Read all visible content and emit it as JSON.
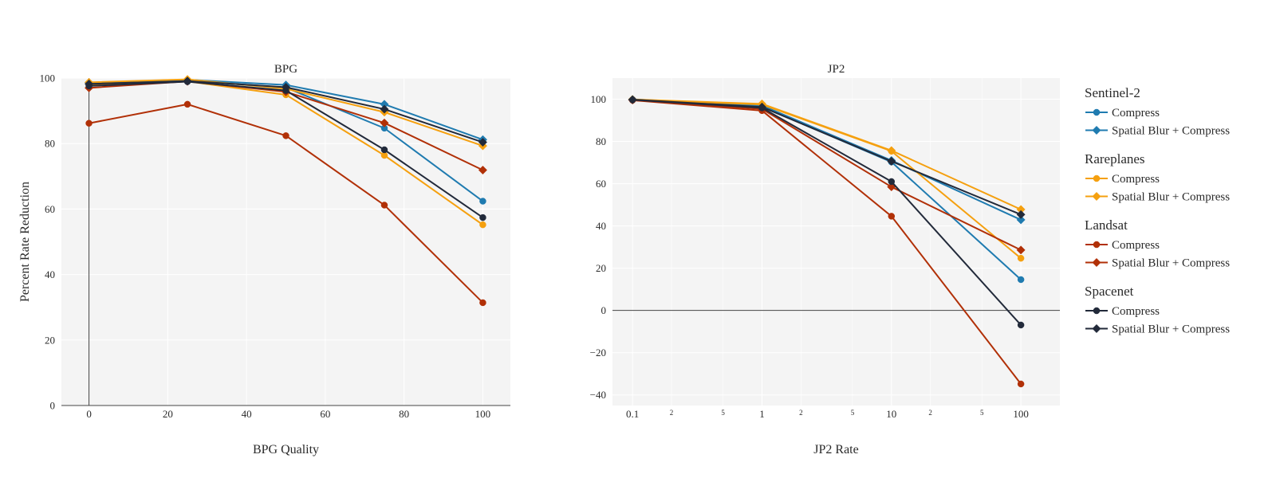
{
  "chart_data": [
    {
      "type": "line",
      "title": "BPG",
      "xlabel": "BPG Quality",
      "ylabel": "Percent Rate Reduction",
      "x_scale": "linear",
      "xlim": [
        -7,
        107
      ],
      "ylim": [
        0,
        100
      ],
      "x_ticks": [
        0,
        20,
        40,
        60,
        80,
        100
      ],
      "x_tick_labels": [
        "0",
        "20",
        "40",
        "60",
        "80",
        "100"
      ],
      "y_ticks": [
        0,
        20,
        40,
        60,
        80,
        100
      ],
      "y_tick_labels": [
        "0",
        "20",
        "40",
        "60",
        "80",
        "100"
      ],
      "x": [
        0,
        25,
        50,
        75,
        100
      ],
      "series": [
        {
          "group": "Sentinel-2",
          "name": "Compress",
          "color": "#1f7bb0",
          "marker": "circle",
          "values": [
            97.9,
            99.2,
            97.1,
            84.7,
            62.4
          ]
        },
        {
          "group": "Sentinel-2",
          "name": "Spatial Blur + Compress",
          "color": "#1f7bb0",
          "marker": "diamond",
          "values": [
            98.6,
            99.5,
            97.9,
            92.0,
            81.2
          ]
        },
        {
          "group": "Rareplanes",
          "name": "Compress",
          "color": "#f5a00f",
          "marker": "circle",
          "values": [
            97.8,
            99.0,
            94.9,
            76.4,
            55.2
          ]
        },
        {
          "group": "Rareplanes",
          "name": "Spatial Blur + Compress",
          "color": "#f5a00f",
          "marker": "diamond",
          "values": [
            98.7,
            99.6,
            96.7,
            89.6,
            79.3
          ]
        },
        {
          "group": "Landsat",
          "name": "Compress",
          "color": "#b13007",
          "marker": "circle",
          "values": [
            86.2,
            92.0,
            82.4,
            61.2,
            31.4
          ]
        },
        {
          "group": "Landsat",
          "name": "Spatial Blur + Compress",
          "color": "#b13007",
          "marker": "diamond",
          "values": [
            97.0,
            99.0,
            95.8,
            86.3,
            71.9
          ]
        },
        {
          "group": "Spacenet",
          "name": "Compress",
          "color": "#222a3a",
          "marker": "circle",
          "values": [
            97.6,
            98.9,
            96.2,
            78.1,
            57.4
          ]
        },
        {
          "group": "Spacenet",
          "name": "Spatial Blur + Compress",
          "color": "#222a3a",
          "marker": "diamond",
          "values": [
            98.2,
            99.1,
            97.2,
            90.5,
            80.4
          ]
        }
      ]
    },
    {
      "type": "line",
      "title": "JP2",
      "xlabel": "JP2 Rate",
      "ylabel": "",
      "x_scale": "log",
      "xlim": [
        0.07,
        200
      ],
      "ylim": [
        -45,
        110
      ],
      "x_ticks": [
        0.1,
        1,
        10,
        100
      ],
      "x_tick_labels": [
        "0.1",
        "1",
        "10",
        "100"
      ],
      "x_minor_ticks": [
        0.2,
        0.5,
        2,
        5,
        20,
        50
      ],
      "x_minor_tick_labels": [
        "2",
        "5",
        "2",
        "5",
        "2",
        "5"
      ],
      "y_ticks": [
        -40,
        -20,
        0,
        20,
        40,
        60,
        80,
        100
      ],
      "y_tick_labels": [
        "−40",
        "−20",
        "0",
        "20",
        "40",
        "60",
        "80",
        "100"
      ],
      "x": [
        0.1,
        1,
        10,
        100
      ],
      "series": [
        {
          "group": "Sentinel-2",
          "name": "Compress",
          "color": "#1f7bb0",
          "marker": "circle",
          "values": [
            99.8,
            96.5,
            70.3,
            14.6
          ]
        },
        {
          "group": "Sentinel-2",
          "name": "Spatial Blur + Compress",
          "color": "#1f7bb0",
          "marker": "diamond",
          "values": [
            99.9,
            97.0,
            71.0,
            42.9
          ]
        },
        {
          "group": "Rareplanes",
          "name": "Compress",
          "color": "#f5a00f",
          "marker": "circle",
          "values": [
            99.8,
            97.5,
            75.4,
            24.7
          ]
        },
        {
          "group": "Rareplanes",
          "name": "Spatial Blur + Compress",
          "color": "#f5a00f",
          "marker": "diamond",
          "values": [
            99.9,
            97.8,
            75.7,
            47.8
          ]
        },
        {
          "group": "Landsat",
          "name": "Compress",
          "color": "#b13007",
          "marker": "circle",
          "values": [
            99.5,
            94.6,
            44.6,
            -34.8
          ]
        },
        {
          "group": "Landsat",
          "name": "Spatial Blur + Compress",
          "color": "#b13007",
          "marker": "diamond",
          "values": [
            99.6,
            95.4,
            58.5,
            28.6
          ]
        },
        {
          "group": "Spacenet",
          "name": "Compress",
          "color": "#222a3a",
          "marker": "circle",
          "values": [
            99.7,
            95.9,
            61.0,
            -6.9
          ]
        },
        {
          "group": "Spacenet",
          "name": "Spatial Blur + Compress",
          "color": "#222a3a",
          "marker": "diamond",
          "values": [
            99.8,
            96.3,
            70.6,
            45.4
          ]
        }
      ]
    }
  ],
  "legend": {
    "placement": "right",
    "groups": [
      {
        "title": "Sentinel-2",
        "color": "#1f7bb0",
        "items": [
          {
            "label": "Compress",
            "marker": "circle"
          },
          {
            "label": "Spatial Blur + Compress",
            "marker": "diamond"
          }
        ]
      },
      {
        "title": "Rareplanes",
        "color": "#f5a00f",
        "items": [
          {
            "label": "Compress",
            "marker": "circle"
          },
          {
            "label": "Spatial Blur + Compress",
            "marker": "diamond"
          }
        ]
      },
      {
        "title": "Landsat",
        "color": "#b13007",
        "items": [
          {
            "label": "Compress",
            "marker": "circle"
          },
          {
            "label": "Spatial Blur + Compress",
            "marker": "diamond"
          }
        ]
      },
      {
        "title": "Spacenet",
        "color": "#222a3a",
        "items": [
          {
            "label": "Compress",
            "marker": "circle"
          },
          {
            "label": "Spatial Blur + Compress",
            "marker": "diamond"
          }
        ]
      }
    ]
  },
  "colors": {
    "plot_background": "#f4f4f4",
    "grid": "#ffffff",
    "zeroline": "#444444"
  }
}
